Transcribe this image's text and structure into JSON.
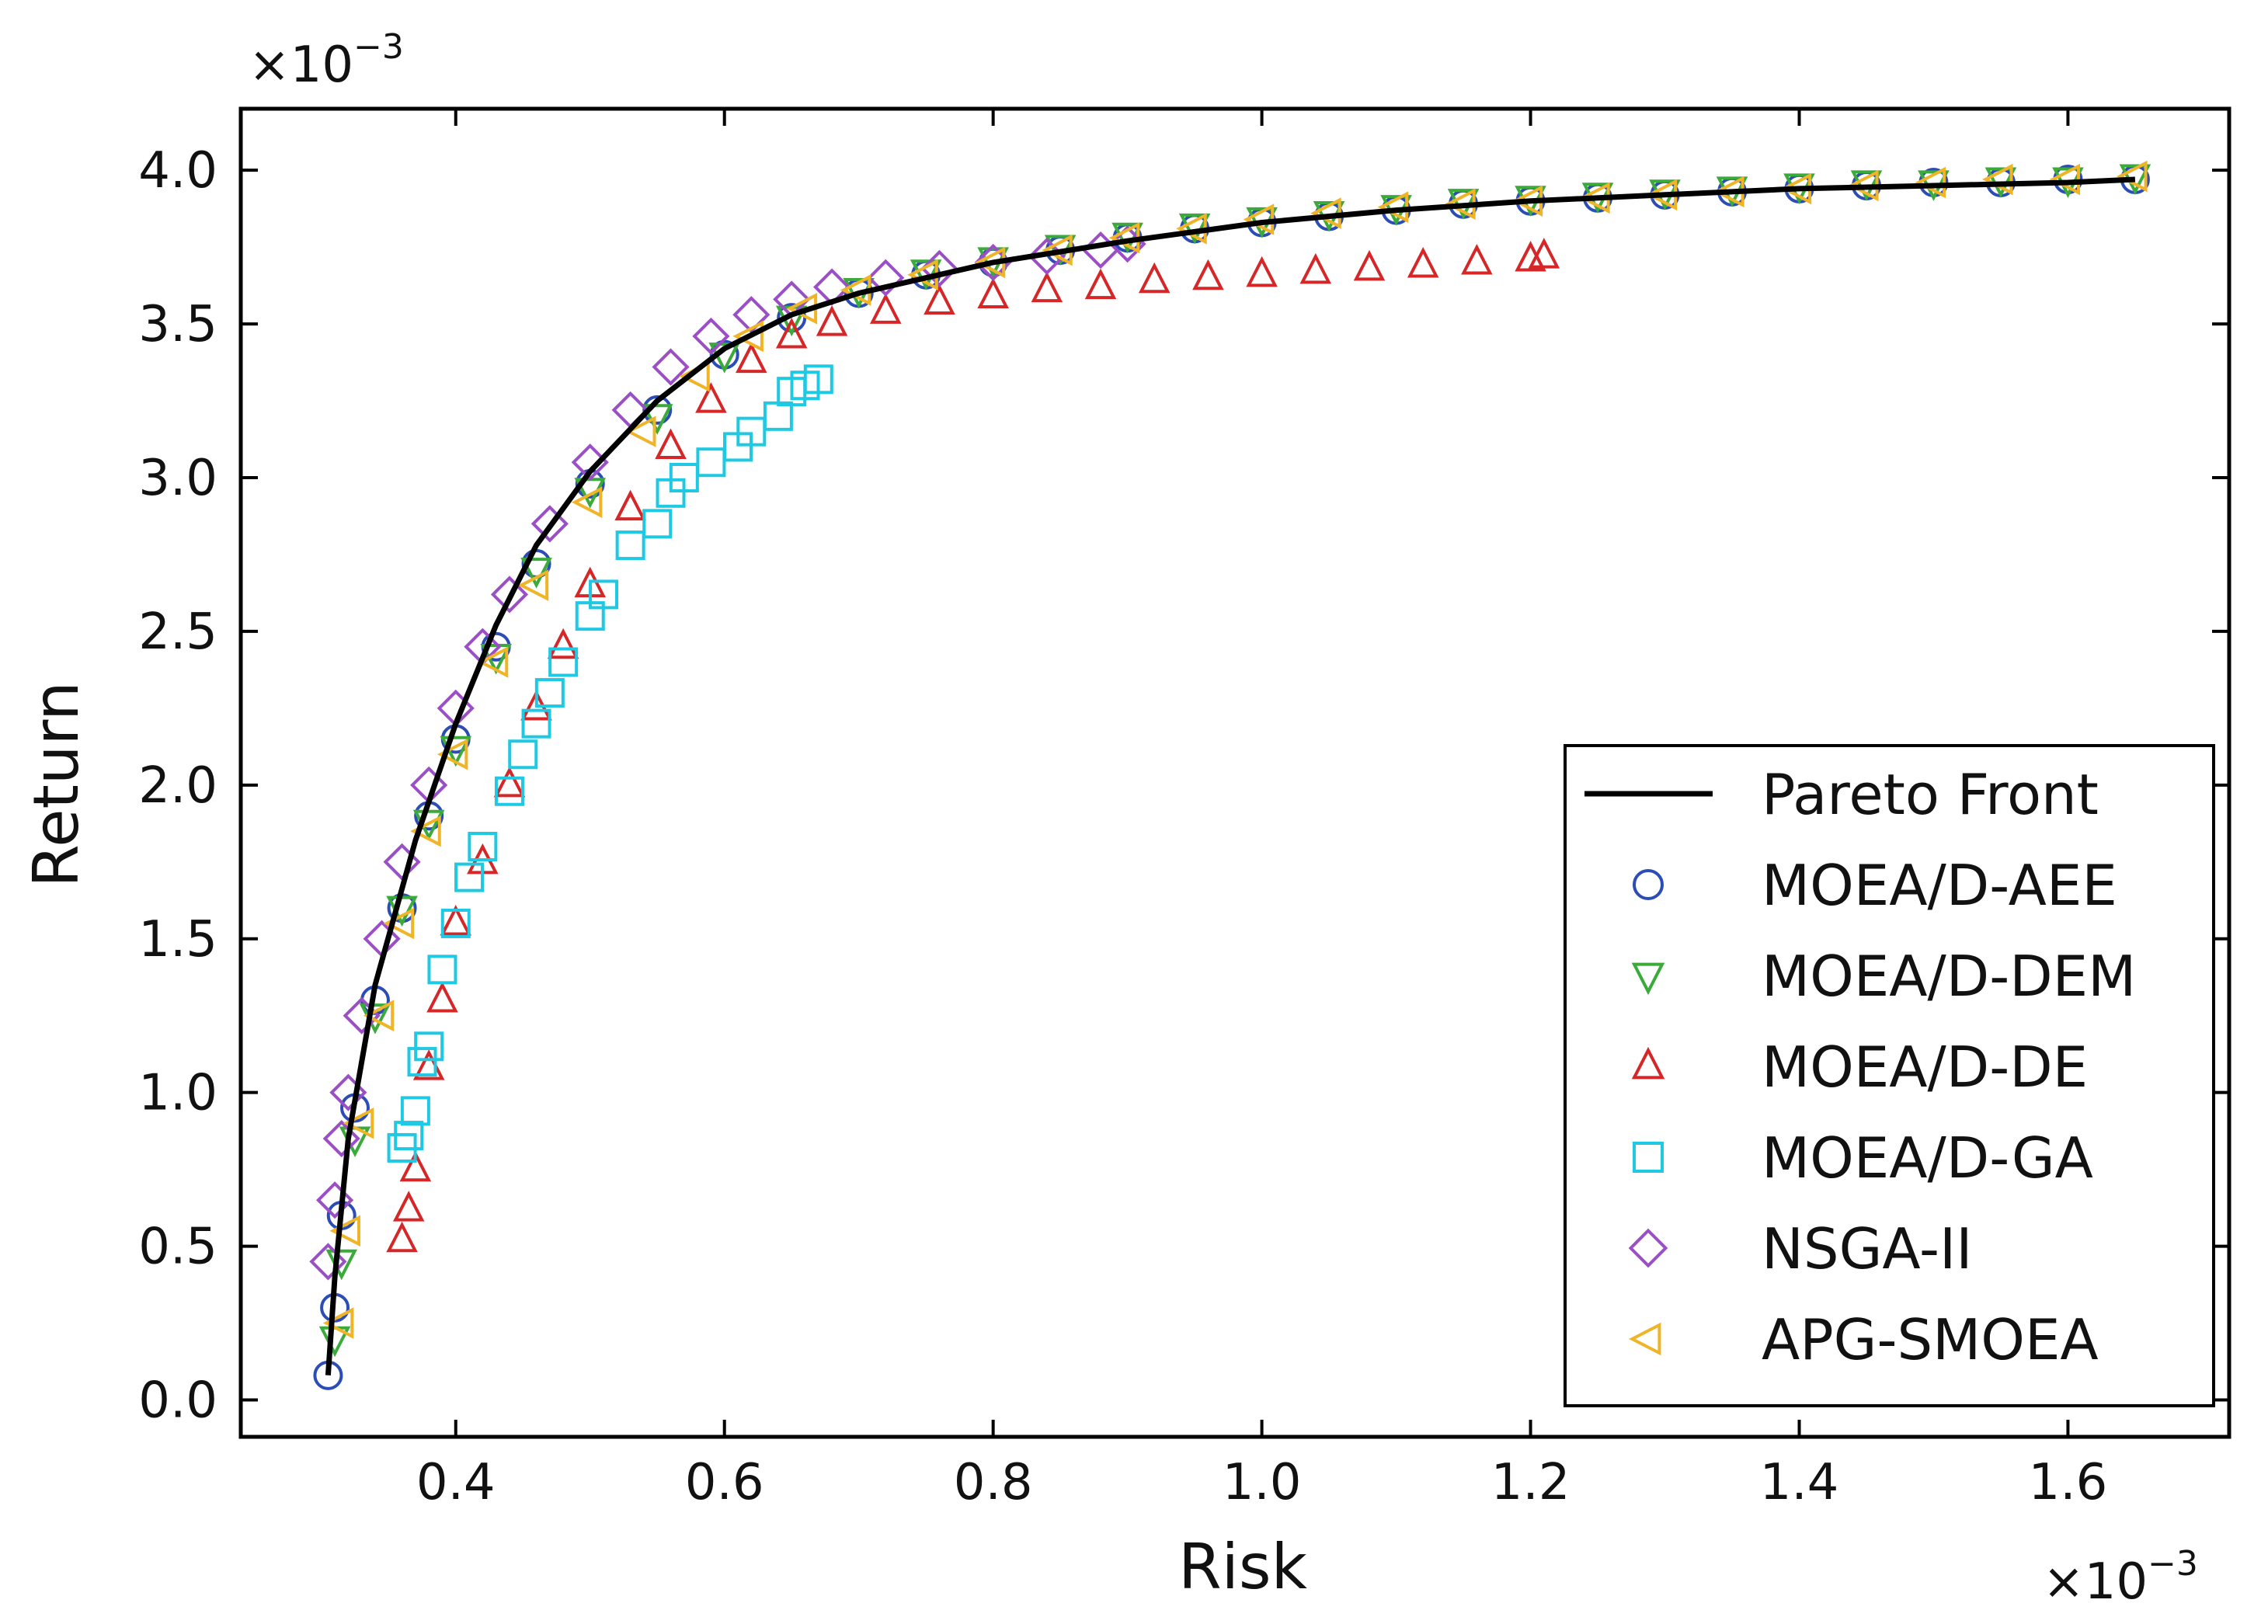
{
  "chart_data": {
    "type": "scatter",
    "title": "",
    "xlabel": "Risk",
    "ylabel": "Return",
    "x_multiplier": "×10",
    "x_multiplier_exp": "−3",
    "y_multiplier": "×10",
    "y_multiplier_exp": "−3",
    "xlim": [
      0.24,
      1.72
    ],
    "ylim": [
      -0.12,
      4.2
    ],
    "xticks": [
      0.4,
      0.6,
      0.8,
      1.0,
      1.2,
      1.4,
      1.6
    ],
    "xtick_labels": [
      "0.4",
      "0.6",
      "0.8",
      "1.0",
      "1.2",
      "1.4",
      "1.6"
    ],
    "yticks": [
      0.0,
      0.5,
      1.0,
      1.5,
      2.0,
      2.5,
      3.0,
      3.5,
      4.0
    ],
    "ytick_labels": [
      "0.0",
      "0.5",
      "1.0",
      "1.5",
      "2.0",
      "2.5",
      "3.0",
      "3.5",
      "4.0"
    ],
    "grid": false,
    "legend_position": "bottom-right",
    "series": [
      {
        "name": "Pareto Front",
        "kind": "line",
        "color": "#000000",
        "x": [
          0.305,
          0.31,
          0.32,
          0.34,
          0.37,
          0.4,
          0.43,
          0.46,
          0.5,
          0.55,
          0.6,
          0.65,
          0.7,
          0.75,
          0.8,
          0.9,
          1.0,
          1.1,
          1.2,
          1.3,
          1.4,
          1.5,
          1.6,
          1.65
        ],
        "y": [
          0.08,
          0.4,
          0.85,
          1.35,
          1.82,
          2.2,
          2.52,
          2.78,
          3.02,
          3.25,
          3.42,
          3.53,
          3.6,
          3.65,
          3.7,
          3.77,
          3.83,
          3.87,
          3.9,
          3.92,
          3.94,
          3.95,
          3.96,
          3.97
        ]
      },
      {
        "name": "MOEA/D-AEE",
        "marker": "circle",
        "color": "#2b4db5",
        "x": [
          0.305,
          0.31,
          0.315,
          0.325,
          0.34,
          0.36,
          0.38,
          0.4,
          0.43,
          0.46,
          0.5,
          0.55,
          0.6,
          0.65,
          0.7,
          0.75,
          0.8,
          0.85,
          0.9,
          0.95,
          1.0,
          1.05,
          1.1,
          1.15,
          1.2,
          1.25,
          1.3,
          1.35,
          1.4,
          1.45,
          1.5,
          1.55,
          1.6,
          1.65
        ],
        "y": [
          0.08,
          0.3,
          0.6,
          0.95,
          1.3,
          1.6,
          1.9,
          2.15,
          2.45,
          2.72,
          2.98,
          3.22,
          3.4,
          3.52,
          3.6,
          3.66,
          3.7,
          3.74,
          3.78,
          3.81,
          3.83,
          3.85,
          3.87,
          3.89,
          3.9,
          3.91,
          3.92,
          3.93,
          3.94,
          3.95,
          3.96,
          3.96,
          3.97,
          3.97
        ]
      },
      {
        "name": "MOEA/D-DEM",
        "marker": "triangle-down",
        "color": "#3aaa3a",
        "x": [
          0.31,
          0.315,
          0.325,
          0.34,
          0.36,
          0.38,
          0.4,
          0.43,
          0.46,
          0.5,
          0.55,
          0.6,
          0.65,
          0.7,
          0.75,
          0.8,
          0.85,
          0.9,
          0.95,
          1.0,
          1.05,
          1.1,
          1.15,
          1.2,
          1.25,
          1.3,
          1.35,
          1.4,
          1.45,
          1.5,
          1.55,
          1.6,
          1.65
        ],
        "y": [
          0.2,
          0.45,
          0.85,
          1.25,
          1.6,
          1.88,
          2.12,
          2.42,
          2.7,
          2.96,
          3.2,
          3.4,
          3.52,
          3.61,
          3.67,
          3.71,
          3.75,
          3.79,
          3.82,
          3.84,
          3.86,
          3.88,
          3.9,
          3.91,
          3.92,
          3.93,
          3.94,
          3.95,
          3.96,
          3.96,
          3.97,
          3.97,
          3.98
        ]
      },
      {
        "name": "MOEA/D-DE",
        "marker": "triangle-up",
        "color": "#d62728",
        "x": [
          0.36,
          0.365,
          0.37,
          0.38,
          0.39,
          0.4,
          0.42,
          0.44,
          0.46,
          0.48,
          0.5,
          0.53,
          0.56,
          0.59,
          0.62,
          0.65,
          0.68,
          0.72,
          0.76,
          0.8,
          0.84,
          0.88,
          0.92,
          0.96,
          1.0,
          1.04,
          1.08,
          1.12,
          1.16,
          1.2,
          1.21
        ],
        "y": [
          0.52,
          0.62,
          0.75,
          1.08,
          1.3,
          1.55,
          1.75,
          2.0,
          2.25,
          2.45,
          2.65,
          2.9,
          3.1,
          3.25,
          3.38,
          3.46,
          3.5,
          3.54,
          3.57,
          3.59,
          3.61,
          3.62,
          3.64,
          3.65,
          3.66,
          3.67,
          3.68,
          3.69,
          3.7,
          3.71,
          3.72
        ]
      },
      {
        "name": "MOEA/D-GA",
        "marker": "square",
        "color": "#1fc8e3",
        "x": [
          0.36,
          0.365,
          0.37,
          0.375,
          0.38,
          0.39,
          0.4,
          0.41,
          0.42,
          0.44,
          0.45,
          0.46,
          0.47,
          0.48,
          0.5,
          0.51,
          0.53,
          0.55,
          0.56,
          0.57,
          0.59,
          0.61,
          0.62,
          0.64,
          0.65,
          0.66,
          0.67
        ],
        "y": [
          0.82,
          0.86,
          0.94,
          1.1,
          1.15,
          1.4,
          1.55,
          1.7,
          1.8,
          1.98,
          2.1,
          2.2,
          2.3,
          2.4,
          2.55,
          2.62,
          2.78,
          2.85,
          2.95,
          3.0,
          3.05,
          3.1,
          3.15,
          3.2,
          3.28,
          3.3,
          3.32
        ]
      },
      {
        "name": "NSGA-II",
        "marker": "diamond",
        "color": "#9b4fc7",
        "x": [
          0.305,
          0.31,
          0.315,
          0.32,
          0.33,
          0.345,
          0.36,
          0.38,
          0.4,
          0.42,
          0.44,
          0.47,
          0.5,
          0.53,
          0.56,
          0.59,
          0.62,
          0.65,
          0.68,
          0.72,
          0.76,
          0.8,
          0.84,
          0.88,
          0.9
        ],
        "y": [
          0.45,
          0.65,
          0.85,
          1.0,
          1.25,
          1.5,
          1.75,
          2.0,
          2.25,
          2.45,
          2.62,
          2.85,
          3.05,
          3.22,
          3.36,
          3.46,
          3.53,
          3.58,
          3.62,
          3.65,
          3.68,
          3.7,
          3.72,
          3.74,
          3.76
        ]
      },
      {
        "name": "APG-SMOEA",
        "marker": "triangle-left",
        "color": "#f0b429",
        "x": [
          0.315,
          0.32,
          0.33,
          0.345,
          0.36,
          0.38,
          0.4,
          0.43,
          0.46,
          0.5,
          0.54,
          0.58,
          0.62,
          0.66,
          0.7,
          0.75,
          0.8,
          0.85,
          0.9,
          0.95,
          1.0,
          1.05,
          1.1,
          1.15,
          1.2,
          1.25,
          1.3,
          1.35,
          1.4,
          1.45,
          1.5,
          1.55,
          1.6,
          1.65
        ],
        "y": [
          0.25,
          0.55,
          0.9,
          1.25,
          1.55,
          1.85,
          2.1,
          2.4,
          2.65,
          2.92,
          3.15,
          3.33,
          3.46,
          3.55,
          3.61,
          3.66,
          3.7,
          3.74,
          3.78,
          3.81,
          3.84,
          3.86,
          3.88,
          3.89,
          3.9,
          3.91,
          3.92,
          3.93,
          3.94,
          3.95,
          3.96,
          3.97,
          3.97,
          3.98
        ]
      }
    ]
  }
}
